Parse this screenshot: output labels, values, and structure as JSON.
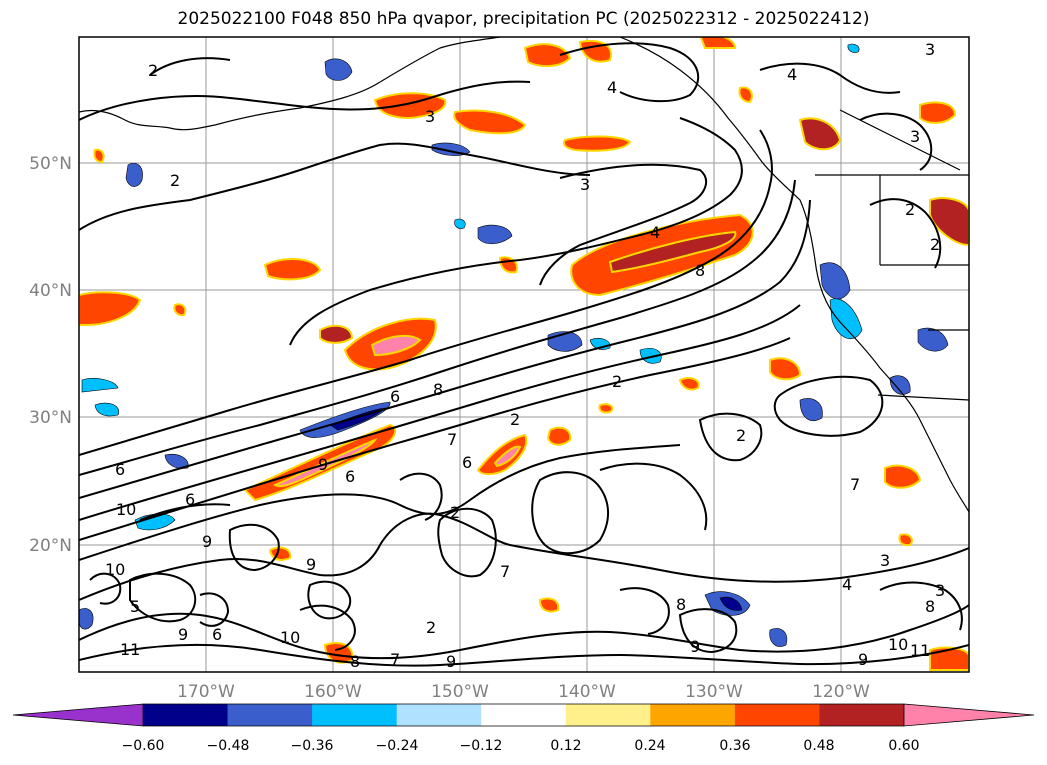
{
  "title": "2025022100 F048 850 hPa qvapor, precipitation PC (2025022312 - 2025022412)",
  "map": {
    "lat_labels": [
      "50°N",
      "40°N",
      "30°N",
      "20°N"
    ],
    "lon_labels": [
      "170°W",
      "160°W",
      "150°W",
      "140°W",
      "130°W",
      "120°W"
    ],
    "contour_labels": [
      "2",
      "2",
      "3",
      "4",
      "4",
      "3",
      "3",
      "3",
      "2",
      "2",
      "4",
      "8",
      "6",
      "8",
      "2",
      "2",
      "6",
      "10",
      "9",
      "6",
      "7",
      "6",
      "2",
      "7",
      "9",
      "10",
      "9",
      "8",
      "9",
      "7",
      "2",
      "3",
      "4",
      "3",
      "6",
      "8",
      "9",
      "10",
      "11",
      "11",
      "9",
      "8",
      "7",
      "9",
      "5",
      "6",
      "10",
      "2"
    ]
  },
  "colorbar": {
    "ticks": [
      "−0.60",
      "−0.48",
      "−0.36",
      "−0.24",
      "−0.12",
      "0.12",
      "0.24",
      "0.36",
      "0.48",
      "0.60"
    ],
    "colors": [
      "#9932cc",
      "#00008b",
      "#3a5fcd",
      "#00bfff",
      "#b0e2ff",
      "#ffffff",
      "#fff08c",
      "#ffa500",
      "#ff4500",
      "#b22222",
      "#ff82ab"
    ]
  }
}
